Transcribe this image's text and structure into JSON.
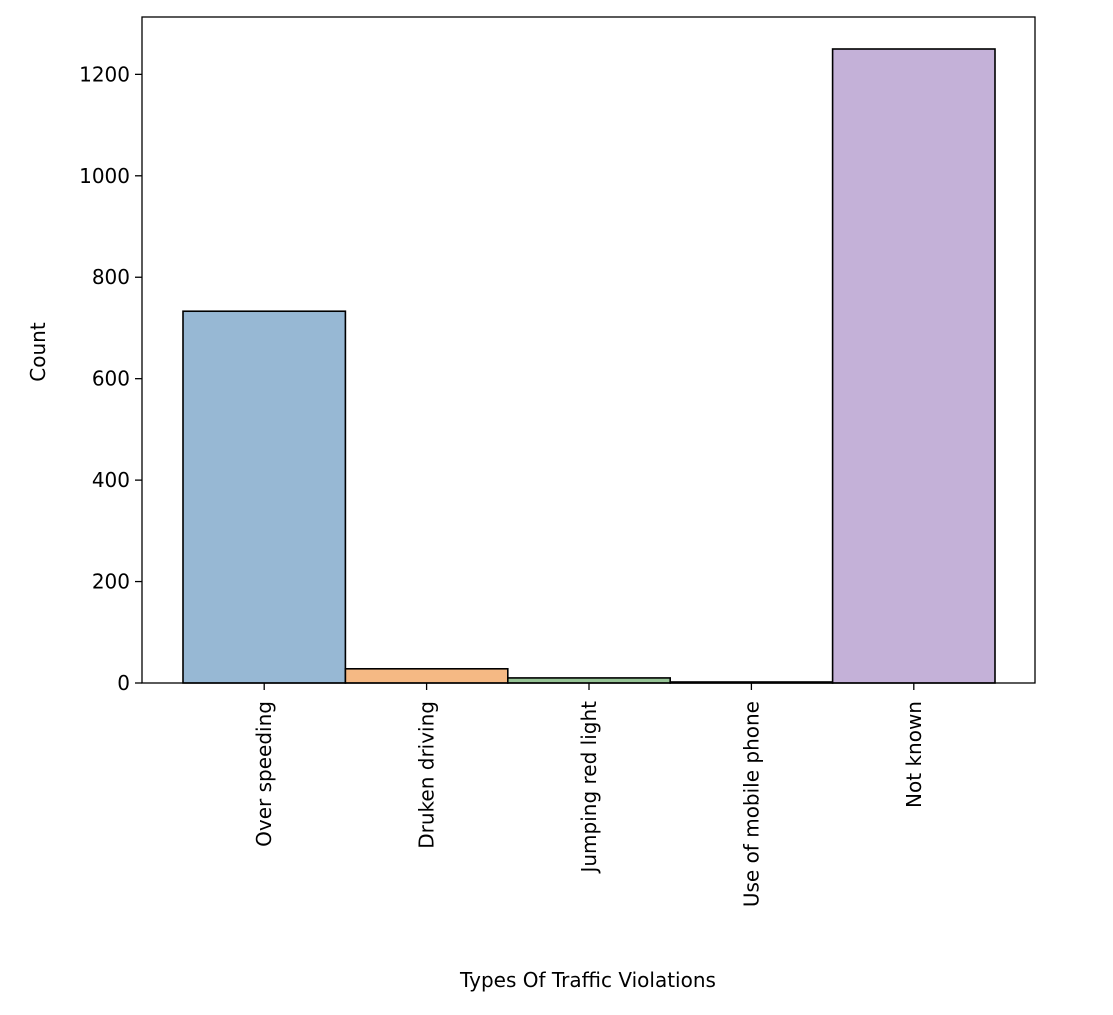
{
  "chart_data": {
    "type": "bar",
    "categories": [
      "Over speeding",
      "Druken driving",
      "Jumping red light",
      "Use of mobile phone",
      "Not known"
    ],
    "values": [
      733,
      28,
      10,
      2,
      1250
    ],
    "title": "",
    "xlabel": "Types Of Traffic Violations",
    "ylabel": "Count",
    "ylim": [
      0,
      1313
    ],
    "yticks": [
      0,
      200,
      400,
      600,
      800,
      1000,
      1200
    ],
    "grid": false,
    "legend": "none",
    "colors": [
      "#97b8d4",
      "#f5b984",
      "#96c496",
      "#e89b9b",
      "#c4b1d8"
    ],
    "edge_color": "#000000"
  }
}
